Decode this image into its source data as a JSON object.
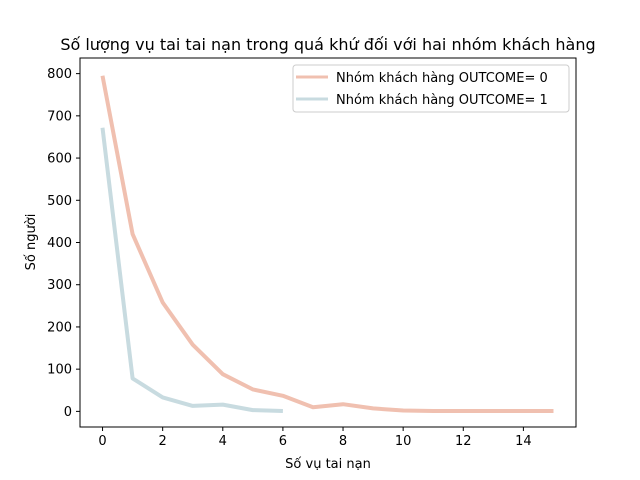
{
  "chart_data": {
    "type": "line",
    "title": "Số lượng vụ tai tai nạn trong quá khứ đối với hai nhóm khách hàng",
    "xlabel": "Số vụ tai nạn",
    "ylabel": "Số người",
    "xlim": [
      -0.75,
      15.75
    ],
    "ylim": [
      -37,
      837
    ],
    "xticks": [
      0,
      2,
      4,
      6,
      8,
      10,
      12,
      14
    ],
    "yticks": [
      0,
      100,
      200,
      300,
      400,
      500,
      600,
      700,
      800
    ],
    "legend_position": "top-right",
    "grid": false,
    "series": [
      {
        "name": "Nhóm khách hàng OUTCOME= 0",
        "color": "#f0c0b0",
        "x": [
          0,
          1,
          2,
          3,
          4,
          5,
          6,
          7,
          8,
          9,
          10,
          11,
          12,
          13,
          14,
          15
        ],
        "values": [
          795,
          420,
          258,
          158,
          88,
          52,
          37,
          10,
          17,
          7,
          2,
          1,
          1,
          1,
          1,
          1
        ]
      },
      {
        "name": "Nhóm khách hàng OUTCOME= 1",
        "color": "#c8dbe0",
        "x": [
          0,
          1,
          2,
          3,
          4,
          5,
          6
        ],
        "values": [
          672,
          78,
          33,
          13,
          16,
          3,
          1
        ]
      }
    ]
  }
}
